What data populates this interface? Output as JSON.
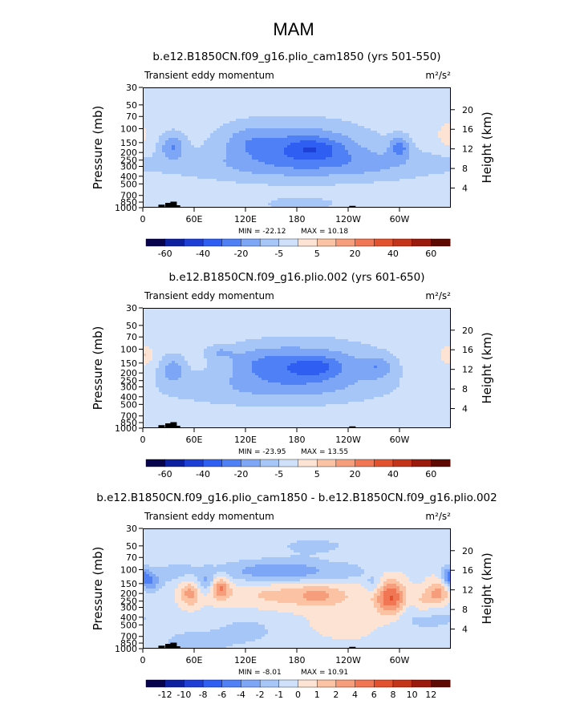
{
  "season": "MAM",
  "chart_data": [
    {
      "type": "heatmap",
      "title": "b.e12.B1850CN.f09_g16.plio_cam1850 (yrs 501-550)",
      "variable": "Transient eddy momentum",
      "units": "m²/s²",
      "ylabel": "Pressure (mb)",
      "y2label": "Height (km)",
      "xticks": [
        "0",
        "60E",
        "120E",
        "180",
        "120W",
        "60W"
      ],
      "xtick_lon": [
        0,
        60,
        120,
        180,
        240,
        300
      ],
      "xlim": [
        0,
        360
      ],
      "yticks": [
        "30",
        "50",
        "70",
        "100",
        "150",
        "200",
        "250",
        "300",
        "400",
        "500",
        "700",
        "850",
        "1000"
      ],
      "ylim": [
        1000,
        30
      ],
      "y2ticks": [
        "20",
        "16",
        "12",
        "8",
        "4"
      ],
      "min_label": "MIN =  -22.12",
      "max_label": "MAX =   10.18",
      "colorbar": {
        "labels": [
          "-60",
          "-40",
          "-20",
          "-5",
          "5",
          "20",
          "40",
          "60"
        ],
        "colors": [
          "#07034d",
          "#0d20a0",
          "#1e3fd6",
          "#2f5ef2",
          "#4f80f6",
          "#7ea6f7",
          "#a6c6f7",
          "#cfe1fa",
          "#fde3d3",
          "#fbc2a4",
          "#f69e7c",
          "#f07654",
          "#e3522f",
          "#c43419",
          "#9a1a0b",
          "#5e0a02"
        ]
      },
      "pattern": {
        "base": 7,
        "features": [
          {
            "lon": 180,
            "p": 160,
            "wlon": 55,
            "wlog": 0.2,
            "amp": -2.7
          },
          {
            "lon": 120,
            "p": 140,
            "wlon": 18,
            "wlog": 0.15,
            "amp": -0.9
          },
          {
            "lon": 200,
            "p": 180,
            "wlon": 22,
            "wlog": 0.09,
            "amp": -1.6
          },
          {
            "lon": 35,
            "p": 170,
            "wlon": 10,
            "wlog": 0.12,
            "amp": -2.4
          },
          {
            "lon": 300,
            "p": 170,
            "wlon": 8,
            "wlog": 0.1,
            "amp": -2.5
          },
          {
            "lon": 150,
            "p": 300,
            "wlon": 80,
            "wlog": 0.14,
            "amp": -1.3
          },
          {
            "lon": 270,
            "p": 280,
            "wlon": 60,
            "wlog": 0.14,
            "amp": -1.2
          },
          {
            "lon": 355,
            "p": 120,
            "wlon": 6,
            "wlog": 0.1,
            "amp": 1.5
          },
          {
            "lon": 185,
            "p": 900,
            "wlon": 60,
            "wlog": 0.12,
            "amp": -0.6
          }
        ]
      },
      "terrain": [
        [
          22,
          0.05
        ],
        [
          30,
          0.08
        ],
        [
          36,
          0.1
        ],
        [
          40,
          0.04
        ],
        [
          245,
          0.03
        ]
      ]
    },
    {
      "type": "heatmap",
      "title": "b.e12.B1850CN.f09_g16.plio.002 (yrs 601-650)",
      "variable": "Transient eddy momentum",
      "units": "m²/s²",
      "ylabel": "Pressure (mb)",
      "y2label": "Height (km)",
      "xticks": [
        "0",
        "60E",
        "120E",
        "180",
        "120W",
        "60W"
      ],
      "xtick_lon": [
        0,
        60,
        120,
        180,
        240,
        300
      ],
      "xlim": [
        0,
        360
      ],
      "yticks": [
        "30",
        "50",
        "70",
        "100",
        "150",
        "200",
        "250",
        "300",
        "400",
        "500",
        "700",
        "850",
        "1000"
      ],
      "ylim": [
        1000,
        30
      ],
      "y2ticks": [
        "20",
        "16",
        "12",
        "8",
        "4"
      ],
      "min_label": "MIN =  -23.95",
      "max_label": "MAX =   13.55",
      "colorbar": {
        "labels": [
          "-60",
          "-40",
          "-20",
          "-5",
          "5",
          "20",
          "40",
          "60"
        ],
        "colors": [
          "#07034d",
          "#0d20a0",
          "#1e3fd6",
          "#2f5ef2",
          "#4f80f6",
          "#7ea6f7",
          "#a6c6f7",
          "#cfe1fa",
          "#fde3d3",
          "#fbc2a4",
          "#f69e7c",
          "#f07654",
          "#e3522f",
          "#c43419",
          "#9a1a0b",
          "#5e0a02"
        ]
      },
      "pattern": {
        "base": 7,
        "features": [
          {
            "lon": 190,
            "p": 160,
            "wlon": 55,
            "wlog": 0.2,
            "amp": -2.7
          },
          {
            "lon": 135,
            "p": 150,
            "wlon": 25,
            "wlog": 0.15,
            "amp": -1.0
          },
          {
            "lon": 200,
            "p": 170,
            "wlon": 20,
            "wlog": 0.08,
            "amp": -1.5
          },
          {
            "lon": 35,
            "p": 180,
            "wlon": 10,
            "wlog": 0.12,
            "amp": -2.0
          },
          {
            "lon": 90,
            "p": 110,
            "wlon": 12,
            "wlog": 0.06,
            "amp": -1.2
          },
          {
            "lon": 275,
            "p": 170,
            "wlon": 12,
            "wlog": 0.1,
            "amp": -1.6
          },
          {
            "lon": 150,
            "p": 320,
            "wlon": 90,
            "wlog": 0.15,
            "amp": -1.3
          },
          {
            "lon": 5,
            "p": 120,
            "wlon": 4,
            "wlog": 0.08,
            "amp": 1.4
          },
          {
            "lon": 355,
            "p": 120,
            "wlon": 5,
            "wlog": 0.08,
            "amp": 1.4
          }
        ]
      },
      "terrain": [
        [
          22,
          0.05
        ],
        [
          30,
          0.08
        ],
        [
          36,
          0.1
        ],
        [
          40,
          0.04
        ],
        [
          245,
          0.03
        ]
      ]
    },
    {
      "type": "heatmap",
      "title": "b.e12.B1850CN.f09_g16.plio_cam1850 - b.e12.B1850CN.f09_g16.plio.002",
      "variable": "Transient eddy momentum",
      "units": "m²/s²",
      "ylabel": "Pressure (mb)",
      "y2label": "Height (km)",
      "xticks": [
        "0",
        "60E",
        "120E",
        "180",
        "120W",
        "60W"
      ],
      "xtick_lon": [
        0,
        60,
        120,
        180,
        240,
        300
      ],
      "xlim": [
        0,
        360
      ],
      "yticks": [
        "30",
        "50",
        "70",
        "100",
        "150",
        "200",
        "250",
        "300",
        "400",
        "500",
        "700",
        "850",
        "1000"
      ],
      "ylim": [
        1000,
        30
      ],
      "y2ticks": [
        "20",
        "16",
        "12",
        "8",
        "4"
      ],
      "min_label": "MIN =   -8.01",
      "max_label": "MAX =   10.91",
      "colorbar": {
        "labels": [
          "-12",
          "-10",
          "-8",
          "-6",
          "-4",
          "-2",
          "-1",
          "0",
          "1",
          "2",
          "4",
          "6",
          "8",
          "10",
          "12"
        ],
        "colors": [
          "#07034d",
          "#0d20a0",
          "#1e3fd6",
          "#2f5ef2",
          "#4f80f6",
          "#7ea6f7",
          "#a6c6f7",
          "#cfe1fa",
          "#fde3d3",
          "#fbc2a4",
          "#f69e7c",
          "#f07654",
          "#e3522f",
          "#c43419",
          "#9a1a0b",
          "#5e0a02"
        ]
      },
      "pattern": {
        "base": 7.2,
        "features": [
          {
            "lon": 180,
            "p": 210,
            "wlon": 60,
            "wlog": 0.12,
            "amp": 1.8
          },
          {
            "lon": 205,
            "p": 210,
            "wlon": 15,
            "wlog": 0.08,
            "amp": 1.2
          },
          {
            "lon": 160,
            "p": 105,
            "wlon": 50,
            "wlog": 0.1,
            "amp": -2.6
          },
          {
            "lon": 240,
            "p": 105,
            "wlon": 12,
            "wlog": 0.06,
            "amp": -1.0
          },
          {
            "lon": 90,
            "p": 170,
            "wlon": 8,
            "wlog": 0.1,
            "amp": 3.3
          },
          {
            "lon": 55,
            "p": 200,
            "wlon": 9,
            "wlog": 0.12,
            "amp": 2.6
          },
          {
            "lon": 290,
            "p": 230,
            "wlon": 12,
            "wlog": 0.16,
            "amp": 4.2
          },
          {
            "lon": 345,
            "p": 200,
            "wlon": 10,
            "wlog": 0.12,
            "amp": 2.8
          },
          {
            "lon": 327,
            "p": 260,
            "wlon": 8,
            "wlog": 0.1,
            "amp": 1.4
          },
          {
            "lon": 8,
            "p": 140,
            "wlon": 9,
            "wlog": 0.1,
            "amp": -2.6
          },
          {
            "lon": 75,
            "p": 150,
            "wlon": 8,
            "wlog": 0.1,
            "amp": -2.0
          },
          {
            "lon": 270,
            "p": 150,
            "wlon": 7,
            "wlog": 0.08,
            "amp": -1.4
          },
          {
            "lon": 357,
            "p": 120,
            "wlon": 6,
            "wlog": 0.08,
            "amp": -2.5
          },
          {
            "lon": 40,
            "p": 110,
            "wlon": 18,
            "wlog": 0.12,
            "amp": -1.0
          },
          {
            "lon": 330,
            "p": 400,
            "wlon": 40,
            "wlog": 0.15,
            "amp": -1.0
          },
          {
            "lon": 120,
            "p": 600,
            "wlon": 30,
            "wlog": 0.15,
            "amp": -1.0
          },
          {
            "lon": 60,
            "p": 850,
            "wlon": 25,
            "wlog": 0.1,
            "amp": -1.4
          },
          {
            "lon": 200,
            "p": 50,
            "wlon": 40,
            "wlog": 0.1,
            "amp": -0.9
          },
          {
            "lon": 240,
            "p": 450,
            "wlon": 30,
            "wlog": 0.15,
            "amp": 1.0
          }
        ]
      },
      "terrain": [
        [
          22,
          0.05
        ],
        [
          30,
          0.08
        ],
        [
          36,
          0.1
        ],
        [
          40,
          0.04
        ],
        [
          245,
          0.03
        ]
      ]
    }
  ]
}
